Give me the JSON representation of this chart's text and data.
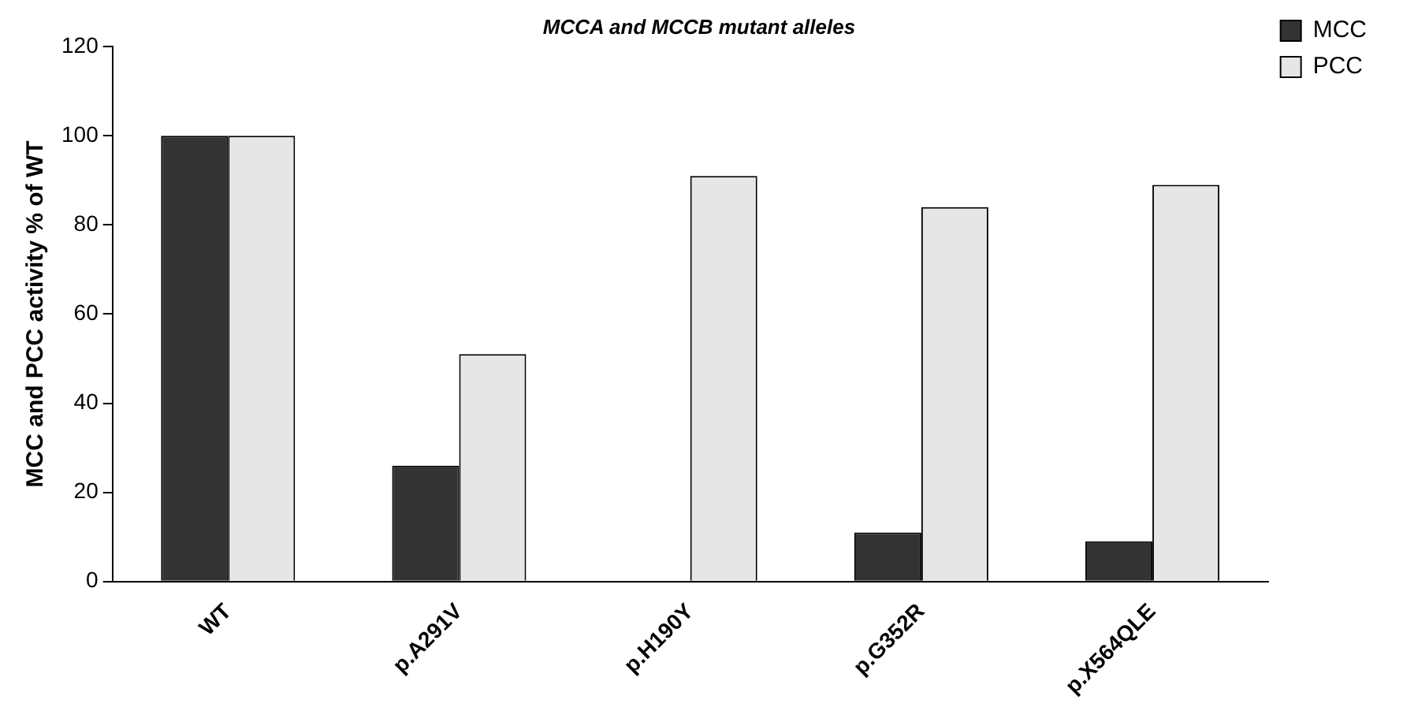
{
  "chart_data": {
    "type": "bar",
    "title": "MCCA and MCCB mutant alleles",
    "ylabel": "MCC and PCC activity % of WT",
    "categories": [
      "WT",
      "p.A291V",
      "p.H190Y",
      "p.G352R",
      "p.X564QLE"
    ],
    "series": [
      {
        "name": "MCC",
        "color": "#333333",
        "values": [
          100,
          26,
          0,
          11,
          9
        ]
      },
      {
        "name": "PCC",
        "color": "#e6e6e6",
        "values": [
          100,
          51,
          91,
          84,
          89
        ]
      }
    ],
    "ylim": [
      0,
      120
    ],
    "yticks": [
      0,
      20,
      40,
      60,
      80,
      100,
      120
    ],
    "grid": false,
    "legend": "top right"
  }
}
